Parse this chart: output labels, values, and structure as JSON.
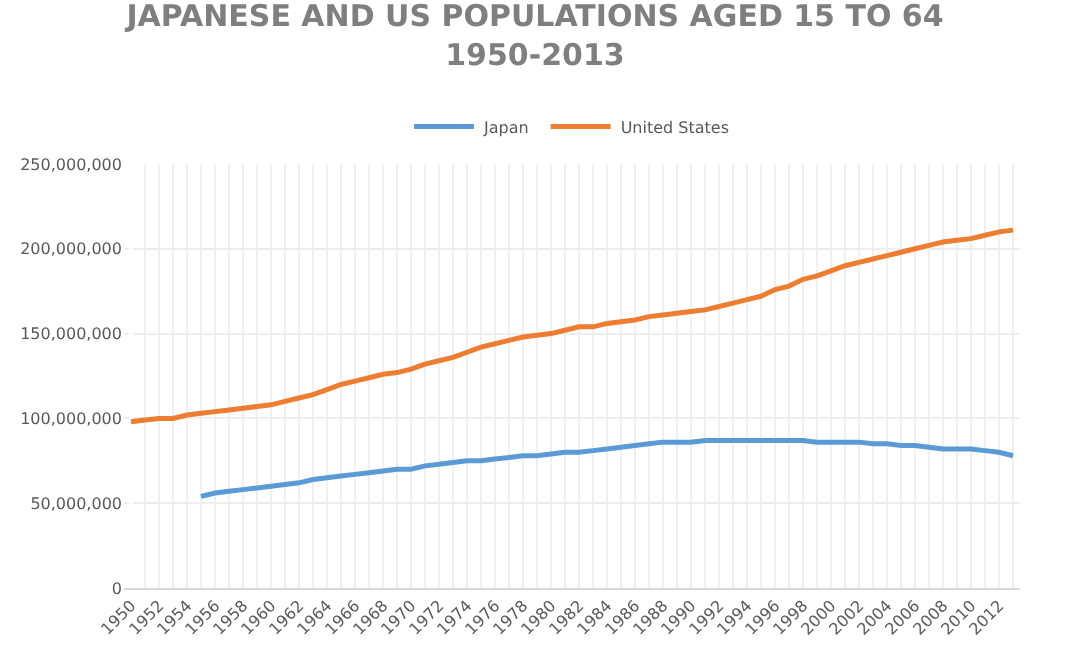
{
  "chart_data": {
    "type": "line",
    "title": "JAPANESE AND US POPULATIONS AGED 15 TO 64\n1950-2013",
    "categories": [
      "1950",
      null,
      "1952",
      null,
      "1954",
      null,
      "1956",
      null,
      "1958",
      null,
      "1960",
      null,
      "1962",
      null,
      "1964",
      null,
      "1966",
      null,
      "1968",
      null,
      "1970",
      null,
      "1972",
      null,
      "1974",
      null,
      "1976",
      null,
      "1978",
      null,
      "1980",
      null,
      "1982",
      null,
      "1984",
      null,
      "1986",
      null,
      "1988",
      null,
      "1990",
      null,
      "1992",
      null,
      "1994",
      null,
      "1996",
      null,
      "1998",
      null,
      "2000",
      null,
      "2002",
      null,
      "2004",
      null,
      "2006",
      null,
      "2008",
      null,
      "2010",
      null,
      "2012",
      null
    ],
    "series": [
      {
        "name": "Japan",
        "color": "#5b9bd5",
        "values": [
          null,
          null,
          null,
          null,
          null,
          54000000,
          56000000,
          57000000,
          58000000,
          59000000,
          60000000,
          61000000,
          62000000,
          64000000,
          65000000,
          66000000,
          67000000,
          68000000,
          69000000,
          70000000,
          70000000,
          72000000,
          73000000,
          74000000,
          75000000,
          75000000,
          76000000,
          77000000,
          78000000,
          78000000,
          79000000,
          80000000,
          80000000,
          81000000,
          82000000,
          83000000,
          84000000,
          85000000,
          86000000,
          86000000,
          86000000,
          87000000,
          87000000,
          87000000,
          87000000,
          87000000,
          87000000,
          87000000,
          87000000,
          86000000,
          86000000,
          86000000,
          86000000,
          85000000,
          85000000,
          84000000,
          84000000,
          83000000,
          82000000,
          82000000,
          82000000,
          81000000,
          80000000,
          78000000
        ]
      },
      {
        "name": "United States",
        "color": "#ed7d31",
        "values": [
          98000000,
          99000000,
          100000000,
          100000000,
          102000000,
          103000000,
          104000000,
          105000000,
          106000000,
          107000000,
          108000000,
          110000000,
          112000000,
          114000000,
          117000000,
          120000000,
          122000000,
          124000000,
          126000000,
          127000000,
          129000000,
          132000000,
          134000000,
          136000000,
          139000000,
          142000000,
          144000000,
          146000000,
          148000000,
          149000000,
          150000000,
          152000000,
          154000000,
          154000000,
          156000000,
          157000000,
          158000000,
          160000000,
          161000000,
          162000000,
          163000000,
          164000000,
          166000000,
          168000000,
          170000000,
          172000000,
          176000000,
          178000000,
          182000000,
          184000000,
          187000000,
          190000000,
          192000000,
          194000000,
          196000000,
          198000000,
          200000000,
          202000000,
          204000000,
          205000000,
          206000000,
          208000000,
          210000000,
          211000000
        ]
      }
    ],
    "ylim": [
      0,
      250000000
    ],
    "yticks": [
      0,
      {
        "value": 50000000,
        "label": "50,000,000"
      },
      {
        "value": 100000000,
        "label": "100,000,000"
      },
      {
        "value": 150000000,
        "label": "150,000,000"
      },
      {
        "value": 200000000,
        "label": "200,000,000"
      },
      {
        "value": 250000000,
        "label": "250,000,000"
      }
    ],
    "grid": true,
    "legend": "top",
    "marker": "none",
    "line_style": "solid"
  }
}
